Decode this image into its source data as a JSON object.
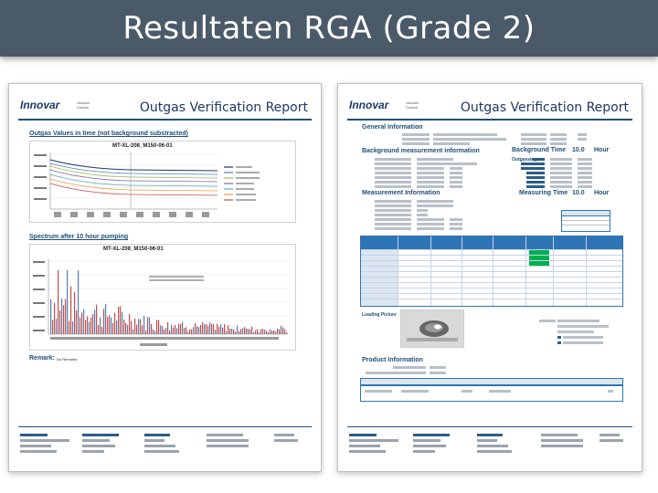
{
  "slide": {
    "title": "Resultaten RGA (Grade 2)"
  },
  "report_left": {
    "logo": "Innovar",
    "logo_tagline": "Vacuum Control",
    "report_title": "Outgas Verification Report",
    "section_outgas": "Outgas Values in time (not background substracted)",
    "chart1_title": "MT-XL-208_M150-06-01",
    "section_spectrum": "Spectrum after 10 hour pumping",
    "chart2_title": "MT-XL-208_M150-06-01",
    "remark_label": "Remark:",
    "remark_text": "No Remarks"
  },
  "report_right": {
    "logo": "Innovar",
    "logo_tagline": "Vacuum Control",
    "report_title": "Outgas Verification Report",
    "section_general": "General Information",
    "section_background": "Background measurement information",
    "background_time_label": "Background Time",
    "background_time_value": "10.0",
    "background_time_unit": "Hour",
    "section_measurement": "Measurement Information",
    "measuring_time_label": "Measuring Time",
    "measuring_time_value": "10.0",
    "measuring_time_unit": "Hour",
    "section_product": "Product Information",
    "outgassing_label": "Outgassing",
    "loading_label": "Loading Picture"
  },
  "colors": {
    "title_bar": "#4a5a69",
    "report_blue": "#1f4e79",
    "table_header": "#2e75b6",
    "pass_green": "#00b050",
    "spectrum_red": "#c0504d",
    "spectrum_blue": "#4f81bd"
  }
}
